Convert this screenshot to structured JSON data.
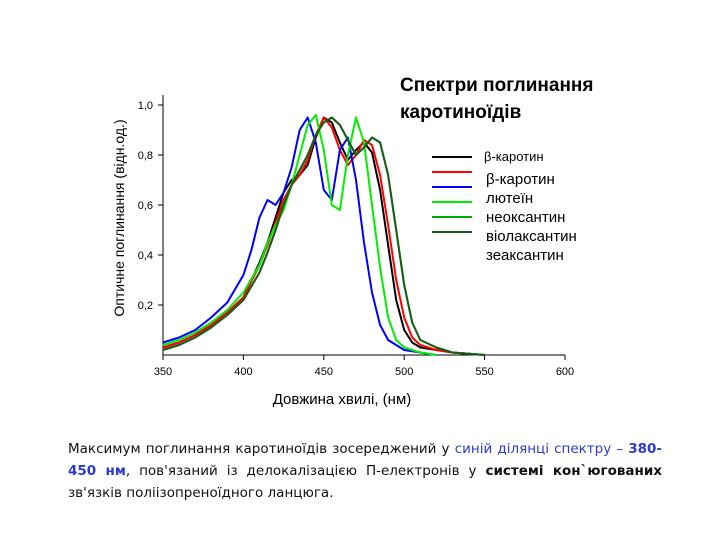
{
  "chart_data": {
    "type": "line",
    "title": "Спектри поглинання каротиноїдів",
    "title_lines": [
      "Спектри поглинання",
      "каротиноїдів"
    ],
    "xlabel": "Довжина хвилі, (нм)",
    "ylabel": "Оптичне поглинання (відн.од.)",
    "xlim": [
      350,
      600
    ],
    "ylim": [
      0,
      1.0
    ],
    "x_ticks": [
      350,
      400,
      450,
      500,
      550,
      600
    ],
    "x_tick_labels": [
      "350",
      "400",
      "450",
      "500",
      "550",
      "600"
    ],
    "y_ticks": [
      0.2,
      0.4,
      0.6,
      0.8,
      1.0
    ],
    "y_tick_labels": [
      "0,2",
      "0,4",
      "0,6",
      "0,8",
      "1,0"
    ],
    "legend_position": "right",
    "series": [
      {
        "name": "β-каротин",
        "color": "#000000",
        "x": [
          350,
          360,
          370,
          380,
          390,
          400,
          410,
          415,
          420,
          425,
          430,
          435,
          440,
          445,
          450,
          455,
          460,
          465,
          470,
          475,
          480,
          485,
          490,
          495,
          500,
          505,
          510,
          520,
          530,
          550
        ],
        "y": [
          0.03,
          0.05,
          0.08,
          0.12,
          0.17,
          0.23,
          0.37,
          0.45,
          0.55,
          0.65,
          0.7,
          0.72,
          0.76,
          0.87,
          0.95,
          0.93,
          0.85,
          0.78,
          0.82,
          0.85,
          0.81,
          0.66,
          0.44,
          0.22,
          0.1,
          0.05,
          0.03,
          0.02,
          0.01,
          0.0
        ]
      },
      {
        "name": "β-каротин",
        "color": "#ff0000",
        "x": [
          350,
          360,
          370,
          380,
          390,
          400,
          410,
          415,
          420,
          425,
          430,
          435,
          440,
          445,
          450,
          455,
          460,
          465,
          470,
          475,
          480,
          485,
          490,
          495,
          500,
          505,
          510,
          520,
          530,
          550
        ],
        "y": [
          0.03,
          0.05,
          0.08,
          0.12,
          0.17,
          0.23,
          0.36,
          0.44,
          0.53,
          0.62,
          0.68,
          0.72,
          0.78,
          0.88,
          0.95,
          0.91,
          0.82,
          0.76,
          0.8,
          0.86,
          0.84,
          0.72,
          0.52,
          0.3,
          0.15,
          0.07,
          0.04,
          0.02,
          0.01,
          0.0
        ]
      },
      {
        "name": "лютеїн",
        "color": "#0000ff",
        "x": [
          350,
          360,
          370,
          380,
          390,
          400,
          405,
          410,
          415,
          420,
          425,
          430,
          435,
          440,
          445,
          450,
          455,
          460,
          465,
          470,
          475,
          480,
          485,
          490,
          500,
          510,
          520
        ],
        "y": [
          0.05,
          0.07,
          0.1,
          0.15,
          0.21,
          0.32,
          0.42,
          0.55,
          0.62,
          0.6,
          0.65,
          0.75,
          0.9,
          0.95,
          0.85,
          0.66,
          0.62,
          0.82,
          0.87,
          0.7,
          0.45,
          0.25,
          0.12,
          0.06,
          0.02,
          0.01,
          0.0
        ]
      },
      {
        "name": "неоксантин",
        "color": "#00ee00",
        "x": [
          350,
          360,
          370,
          380,
          390,
          400,
          410,
          415,
          420,
          425,
          430,
          435,
          440,
          445,
          450,
          455,
          460,
          465,
          470,
          475,
          480,
          485,
          490,
          495,
          500,
          510,
          520
        ],
        "y": [
          0.04,
          0.06,
          0.09,
          0.13,
          0.18,
          0.25,
          0.36,
          0.45,
          0.52,
          0.58,
          0.68,
          0.8,
          0.92,
          0.96,
          0.82,
          0.6,
          0.58,
          0.8,
          0.95,
          0.85,
          0.6,
          0.35,
          0.15,
          0.06,
          0.03,
          0.01,
          0.0
        ]
      },
      {
        "name": "віолаксантин",
        "color": "#00aa00",
        "x": [
          350,
          360,
          370,
          380,
          390,
          400,
          410,
          415,
          420,
          425,
          430,
          435,
          440,
          445,
          450,
          455,
          460,
          465,
          470,
          475,
          480,
          485,
          490,
          495,
          500,
          505,
          510,
          520,
          530,
          550
        ],
        "y": [
          0.02,
          0.04,
          0.07,
          0.11,
          0.16,
          0.22,
          0.33,
          0.41,
          0.5,
          0.6,
          0.68,
          0.74,
          0.8,
          0.88,
          0.93,
          0.95,
          0.92,
          0.86,
          0.8,
          0.83,
          0.87,
          0.85,
          0.72,
          0.5,
          0.28,
          0.13,
          0.06,
          0.03,
          0.01,
          0.0
        ]
      },
      {
        "name": "зеаксантин",
        "color": "#1a5c1a",
        "x": [
          350,
          360,
          370,
          380,
          390,
          400,
          410,
          415,
          420,
          425,
          430,
          435,
          440,
          445,
          450,
          455,
          460,
          465,
          470,
          475,
          480,
          485,
          490,
          495,
          500,
          505,
          510,
          520,
          530,
          550
        ],
        "y": [
          0.02,
          0.04,
          0.07,
          0.11,
          0.16,
          0.22,
          0.33,
          0.41,
          0.5,
          0.6,
          0.68,
          0.74,
          0.8,
          0.88,
          0.93,
          0.95,
          0.92,
          0.86,
          0.8,
          0.83,
          0.87,
          0.85,
          0.72,
          0.5,
          0.28,
          0.13,
          0.06,
          0.03,
          0.01,
          0.0
        ]
      }
    ],
    "legend_line_labels": [
      "β-каротин",
      "β-каротин",
      "лютеїн",
      "неоксантин",
      "віолаксантин",
      "зеаксантин"
    ]
  },
  "caption": {
    "p1": "Максимум поглинання каротиноїдів зосереджений у ",
    "p2": "синій ділянці спектру – ",
    "p3": "380-450 нм",
    "p4": ", пов'язаний із делокалізацією П-електронів у ",
    "p5": "системі кон`югованих",
    "p6": " зв'язків поліізопреноїдного ланцюга."
  }
}
